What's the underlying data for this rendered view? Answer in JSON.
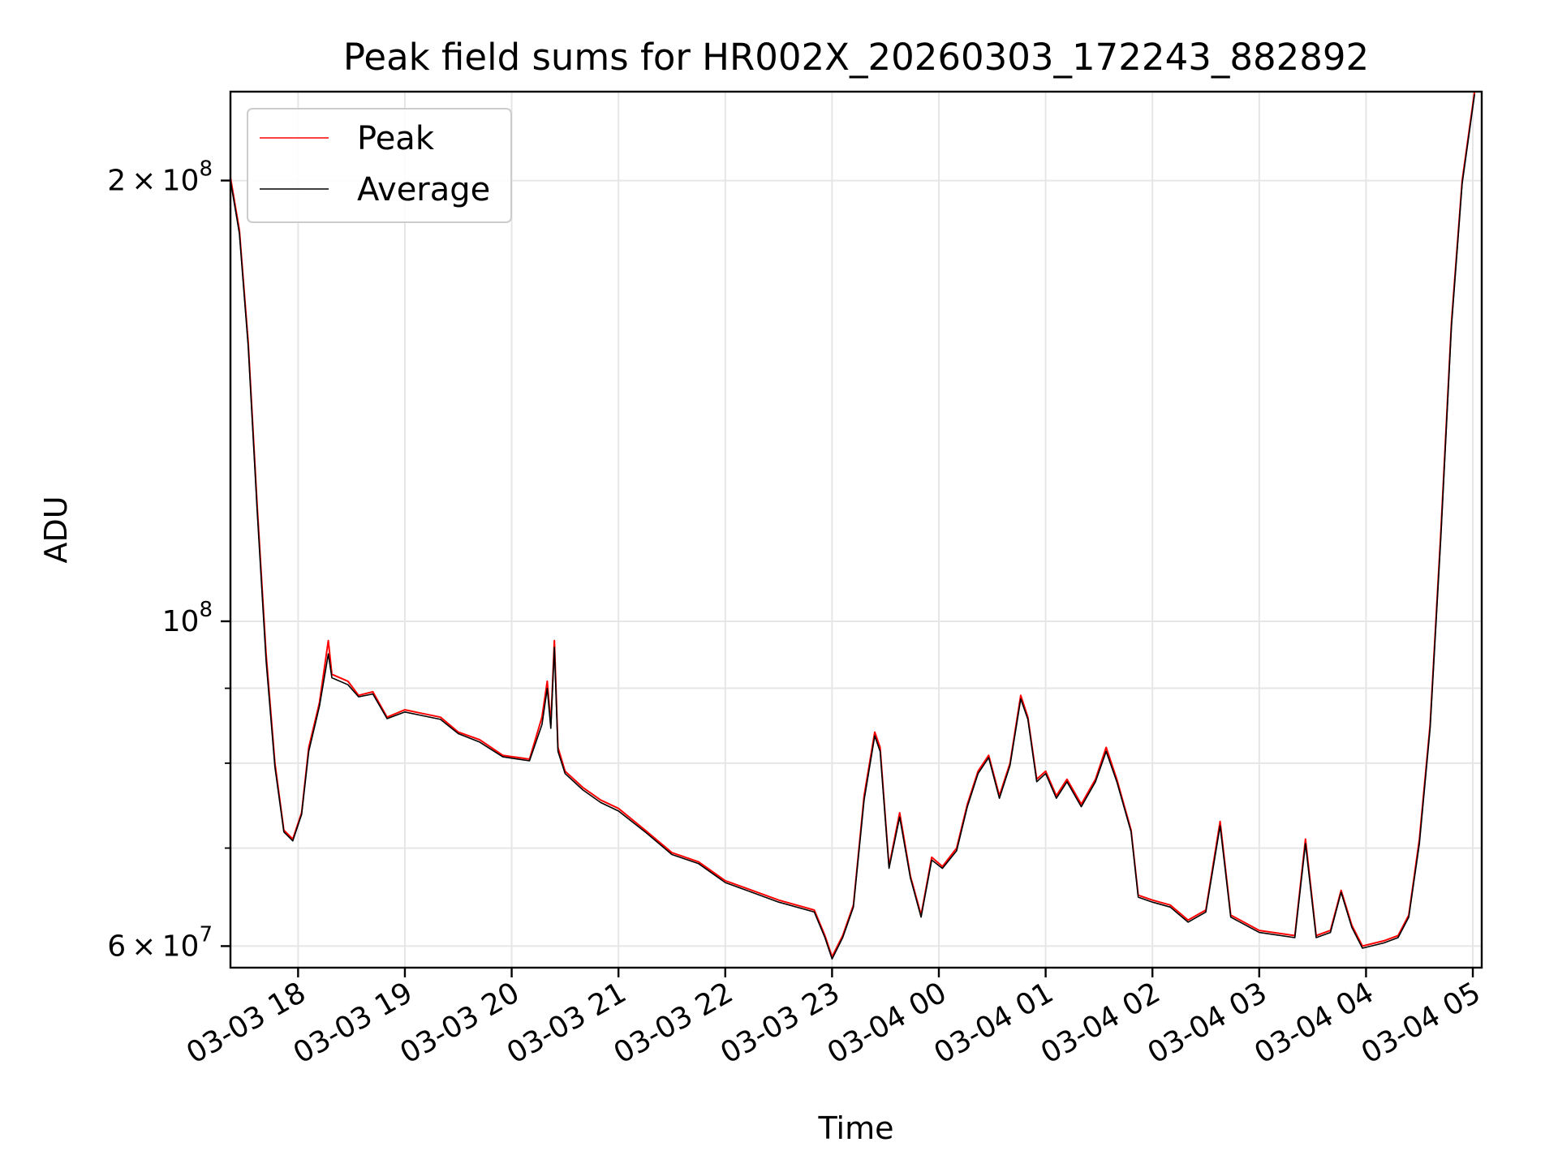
{
  "chart_data": {
    "type": "line",
    "title": "Peak field sums for HR002X_20260303_172243_882892",
    "xlabel": "Time",
    "ylabel": "ADU",
    "x_axis": {
      "kind": "datetime",
      "range": [
        "2026-03-03 17:22",
        "2026-03-04 05:05"
      ],
      "tick_values": [
        "2026-03-03 18:00",
        "2026-03-03 19:00",
        "2026-03-03 20:00",
        "2026-03-03 21:00",
        "2026-03-03 22:00",
        "2026-03-03 23:00",
        "2026-03-04 00:00",
        "2026-03-04 01:00",
        "2026-03-04 02:00",
        "2026-03-04 03:00",
        "2026-03-04 04:00",
        "2026-03-04 05:00"
      ],
      "tick_labels": [
        "03-03 18",
        "03-03 19",
        "03-03 20",
        "03-03 21",
        "03-03 22",
        "03-03 23",
        "03-04 00",
        "03-04 01",
        "03-04 02",
        "03-04 03",
        "03-04 04",
        "03-04 05"
      ]
    },
    "y_axis": {
      "scale": "log",
      "range": [
        58000000,
        230000000
      ],
      "major_ticks": [
        {
          "value": 60000000,
          "mantissa": "6",
          "exp": "7"
        },
        {
          "value": 100000000,
          "mantissa": "",
          "exp": "8"
        },
        {
          "value": 200000000,
          "mantissa": "2",
          "exp": "8"
        }
      ],
      "minor_ticks": [
        70000000,
        80000000,
        90000000
      ]
    },
    "grid": true,
    "legend": {
      "placement": "top-left"
    },
    "series": [
      {
        "name": "Peak",
        "color": "#ff0000",
        "points": [
          [
            "2026-03-03 17:22",
            201000000
          ],
          [
            "2026-03-03 17:27",
            185000000
          ],
          [
            "2026-03-03 17:32",
            155000000
          ],
          [
            "2026-03-03 17:37",
            120000000
          ],
          [
            "2026-03-03 17:42",
            95000000
          ],
          [
            "2026-03-03 17:47",
            80000000
          ],
          [
            "2026-03-03 17:52",
            72000000
          ],
          [
            "2026-03-03 17:57",
            71000000
          ],
          [
            "2026-03-03 18:02",
            74000000
          ],
          [
            "2026-03-03 18:06",
            82000000
          ],
          [
            "2026-03-03 18:12",
            88000000
          ],
          [
            "2026-03-03 18:17",
            97000000
          ],
          [
            "2026-03-03 18:19",
            92000000
          ],
          [
            "2026-03-03 18:28",
            91000000
          ],
          [
            "2026-03-03 18:34",
            89000000
          ],
          [
            "2026-03-03 18:42",
            89500000
          ],
          [
            "2026-03-03 18:50",
            86000000
          ],
          [
            "2026-03-03 19:00",
            87000000
          ],
          [
            "2026-03-03 19:10",
            86500000
          ],
          [
            "2026-03-03 19:20",
            86000000
          ],
          [
            "2026-03-03 19:30",
            84000000
          ],
          [
            "2026-03-03 19:42",
            83000000
          ],
          [
            "2026-03-03 19:55",
            81000000
          ],
          [
            "2026-03-03 20:10",
            80500000
          ],
          [
            "2026-03-03 20:17",
            86000000
          ],
          [
            "2026-03-03 20:20",
            91000000
          ],
          [
            "2026-03-03 20:22",
            85000000
          ],
          [
            "2026-03-03 20:24",
            97000000
          ],
          [
            "2026-03-03 20:26",
            82000000
          ],
          [
            "2026-03-03 20:30",
            79000000
          ],
          [
            "2026-03-03 20:40",
            77000000
          ],
          [
            "2026-03-03 20:50",
            75500000
          ],
          [
            "2026-03-03 21:00",
            74500000
          ],
          [
            "2026-03-03 21:15",
            72000000
          ],
          [
            "2026-03-03 21:30",
            69500000
          ],
          [
            "2026-03-03 21:45",
            68500000
          ],
          [
            "2026-03-03 22:00",
            66500000
          ],
          [
            "2026-03-03 22:15",
            65500000
          ],
          [
            "2026-03-03 22:30",
            64500000
          ],
          [
            "2026-03-03 22:50",
            63500000
          ],
          [
            "2026-03-03 22:56",
            61000000
          ],
          [
            "2026-03-03 23:00",
            59000000
          ],
          [
            "2026-03-03 23:06",
            61000000
          ],
          [
            "2026-03-03 23:12",
            64000000
          ],
          [
            "2026-03-03 23:18",
            76000000
          ],
          [
            "2026-03-03 23:24",
            84000000
          ],
          [
            "2026-03-03 23:27",
            82000000
          ],
          [
            "2026-03-03 23:32",
            68000000
          ],
          [
            "2026-03-03 23:38",
            74000000
          ],
          [
            "2026-03-03 23:44",
            67000000
          ],
          [
            "2026-03-03 23:50",
            63000000
          ],
          [
            "2026-03-03 23:56",
            69000000
          ],
          [
            "2026-03-04 00:02",
            68000000
          ],
          [
            "2026-03-04 00:10",
            70000000
          ],
          [
            "2026-03-04 00:16",
            75000000
          ],
          [
            "2026-03-04 00:22",
            79000000
          ],
          [
            "2026-03-04 00:28",
            81000000
          ],
          [
            "2026-03-04 00:34",
            76000000
          ],
          [
            "2026-03-04 00:40",
            80000000
          ],
          [
            "2026-03-04 00:46",
            89000000
          ],
          [
            "2026-03-04 00:50",
            86000000
          ],
          [
            "2026-03-04 00:55",
            78000000
          ],
          [
            "2026-03-04 01:00",
            79000000
          ],
          [
            "2026-03-04 01:06",
            76000000
          ],
          [
            "2026-03-04 01:12",
            78000000
          ],
          [
            "2026-03-04 01:20",
            75000000
          ],
          [
            "2026-03-04 01:28",
            78000000
          ],
          [
            "2026-03-04 01:34",
            82000000
          ],
          [
            "2026-03-04 01:40",
            78000000
          ],
          [
            "2026-03-04 01:48",
            72000000
          ],
          [
            "2026-03-04 01:52",
            65000000
          ],
          [
            "2026-03-04 02:00",
            64500000
          ],
          [
            "2026-03-04 02:10",
            64000000
          ],
          [
            "2026-03-04 02:20",
            62500000
          ],
          [
            "2026-03-04 02:30",
            63500000
          ],
          [
            "2026-03-04 02:38",
            73000000
          ],
          [
            "2026-03-04 02:44",
            63000000
          ],
          [
            "2026-03-04 03:00",
            61500000
          ],
          [
            "2026-03-04 03:20",
            61000000
          ],
          [
            "2026-03-04 03:26",
            71000000
          ],
          [
            "2026-03-04 03:32",
            61000000
          ],
          [
            "2026-03-04 03:40",
            61500000
          ],
          [
            "2026-03-04 03:46",
            65500000
          ],
          [
            "2026-03-04 03:52",
            62000000
          ],
          [
            "2026-03-04 03:58",
            60000000
          ],
          [
            "2026-03-04 04:10",
            60500000
          ],
          [
            "2026-03-04 04:18",
            61000000
          ],
          [
            "2026-03-04 04:24",
            63000000
          ],
          [
            "2026-03-04 04:30",
            71000000
          ],
          [
            "2026-03-04 04:36",
            85000000
          ],
          [
            "2026-03-04 04:42",
            115000000
          ],
          [
            "2026-03-04 04:48",
            160000000
          ],
          [
            "2026-03-04 04:54",
            200000000
          ],
          [
            "2026-03-04 05:01",
            230000000
          ]
        ]
      },
      {
        "name": "Average",
        "color": "#000000",
        "points": [
          [
            "2026-03-03 17:22",
            200000000
          ],
          [
            "2026-03-03 17:27",
            184000000
          ],
          [
            "2026-03-03 17:32",
            154000000
          ],
          [
            "2026-03-03 17:37",
            119000000
          ],
          [
            "2026-03-03 17:42",
            94000000
          ],
          [
            "2026-03-03 17:47",
            79500000
          ],
          [
            "2026-03-03 17:52",
            71800000
          ],
          [
            "2026-03-03 17:57",
            70800000
          ],
          [
            "2026-03-03 18:02",
            73800000
          ],
          [
            "2026-03-03 18:06",
            81500000
          ],
          [
            "2026-03-03 18:12",
            87500000
          ],
          [
            "2026-03-03 18:17",
            95000000
          ],
          [
            "2026-03-03 18:19",
            91500000
          ],
          [
            "2026-03-03 18:28",
            90500000
          ],
          [
            "2026-03-03 18:34",
            88800000
          ],
          [
            "2026-03-03 18:42",
            89200000
          ],
          [
            "2026-03-03 18:50",
            85800000
          ],
          [
            "2026-03-03 19:00",
            86700000
          ],
          [
            "2026-03-03 19:10",
            86200000
          ],
          [
            "2026-03-03 19:20",
            85700000
          ],
          [
            "2026-03-03 19:30",
            83800000
          ],
          [
            "2026-03-03 19:42",
            82700000
          ],
          [
            "2026-03-03 19:55",
            80800000
          ],
          [
            "2026-03-03 20:10",
            80300000
          ],
          [
            "2026-03-03 20:17",
            85000000
          ],
          [
            "2026-03-03 20:20",
            90000000
          ],
          [
            "2026-03-03 20:22",
            84500000
          ],
          [
            "2026-03-03 20:24",
            96000000
          ],
          [
            "2026-03-03 20:26",
            81500000
          ],
          [
            "2026-03-03 20:30",
            78700000
          ],
          [
            "2026-03-03 20:40",
            76700000
          ],
          [
            "2026-03-03 20:50",
            75200000
          ],
          [
            "2026-03-03 21:00",
            74200000
          ],
          [
            "2026-03-03 21:15",
            71800000
          ],
          [
            "2026-03-03 21:30",
            69300000
          ],
          [
            "2026-03-03 21:45",
            68300000
          ],
          [
            "2026-03-03 22:00",
            66300000
          ],
          [
            "2026-03-03 22:15",
            65300000
          ],
          [
            "2026-03-03 22:30",
            64300000
          ],
          [
            "2026-03-03 22:50",
            63300000
          ],
          [
            "2026-03-03 22:56",
            60800000
          ],
          [
            "2026-03-03 23:00",
            58800000
          ],
          [
            "2026-03-03 23:06",
            60800000
          ],
          [
            "2026-03-03 23:12",
            63800000
          ],
          [
            "2026-03-03 23:18",
            75500000
          ],
          [
            "2026-03-03 23:24",
            83500000
          ],
          [
            "2026-03-03 23:27",
            81500000
          ],
          [
            "2026-03-03 23:32",
            67800000
          ],
          [
            "2026-03-03 23:38",
            73500000
          ],
          [
            "2026-03-03 23:44",
            66800000
          ],
          [
            "2026-03-03 23:50",
            62800000
          ],
          [
            "2026-03-03 23:56",
            68700000
          ],
          [
            "2026-03-04 00:02",
            67800000
          ],
          [
            "2026-03-04 00:10",
            69700000
          ],
          [
            "2026-03-04 00:16",
            74700000
          ],
          [
            "2026-03-04 00:22",
            78700000
          ],
          [
            "2026-03-04 00:28",
            80700000
          ],
          [
            "2026-03-04 00:34",
            75700000
          ],
          [
            "2026-03-04 00:40",
            79700000
          ],
          [
            "2026-03-04 00:46",
            88500000
          ],
          [
            "2026-03-04 00:50",
            85700000
          ],
          [
            "2026-03-04 00:55",
            77700000
          ],
          [
            "2026-03-04 01:00",
            78700000
          ],
          [
            "2026-03-04 01:06",
            75700000
          ],
          [
            "2026-03-04 01:12",
            77700000
          ],
          [
            "2026-03-04 01:20",
            74700000
          ],
          [
            "2026-03-04 01:28",
            77700000
          ],
          [
            "2026-03-04 01:34",
            81500000
          ],
          [
            "2026-03-04 01:40",
            77700000
          ],
          [
            "2026-03-04 01:48",
            71800000
          ],
          [
            "2026-03-04 01:52",
            64800000
          ],
          [
            "2026-03-04 02:00",
            64300000
          ],
          [
            "2026-03-04 02:10",
            63800000
          ],
          [
            "2026-03-04 02:20",
            62300000
          ],
          [
            "2026-03-04 02:30",
            63300000
          ],
          [
            "2026-03-04 02:38",
            72500000
          ],
          [
            "2026-03-04 02:44",
            62800000
          ],
          [
            "2026-03-04 03:00",
            61300000
          ],
          [
            "2026-03-04 03:20",
            60800000
          ],
          [
            "2026-03-04 03:26",
            70500000
          ],
          [
            "2026-03-04 03:32",
            60800000
          ],
          [
            "2026-03-04 03:40",
            61300000
          ],
          [
            "2026-03-04 03:46",
            65300000
          ],
          [
            "2026-03-04 03:52",
            61800000
          ],
          [
            "2026-03-04 03:58",
            59800000
          ],
          [
            "2026-03-04 04:10",
            60300000
          ],
          [
            "2026-03-04 04:18",
            60800000
          ],
          [
            "2026-03-04 04:24",
            62800000
          ],
          [
            "2026-03-04 04:30",
            70500000
          ],
          [
            "2026-03-04 04:36",
            84500000
          ],
          [
            "2026-03-04 04:42",
            114000000
          ],
          [
            "2026-03-04 04:48",
            159000000
          ],
          [
            "2026-03-04 04:54",
            199000000
          ],
          [
            "2026-03-04 05:01",
            229000000
          ]
        ]
      }
    ]
  }
}
